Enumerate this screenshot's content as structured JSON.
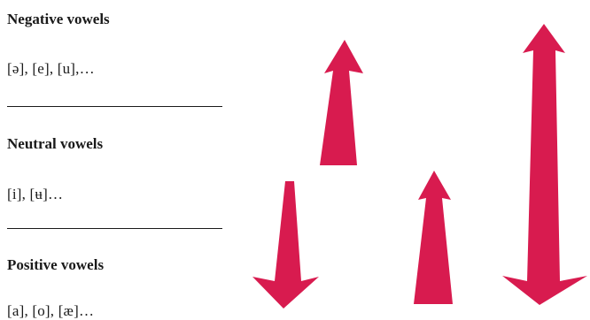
{
  "groups": [
    {
      "title": "Negative vowels",
      "items": "[ə], [e], [u],…"
    },
    {
      "title": "Neutral vowels",
      "items": "[i], [ʉ]…"
    },
    {
      "title": "Positive vowels",
      "items": "[a], [o], [æ]…"
    }
  ],
  "arrows": [
    {
      "direction": "up",
      "size": "medium",
      "color": "#D81B4F"
    },
    {
      "direction": "down",
      "size": "medium",
      "color": "#D81B4F"
    },
    {
      "direction": "up",
      "size": "small",
      "color": "#D81B4F"
    },
    {
      "direction": "up-and-down",
      "size": "large",
      "color": "#D81B4F"
    }
  ]
}
